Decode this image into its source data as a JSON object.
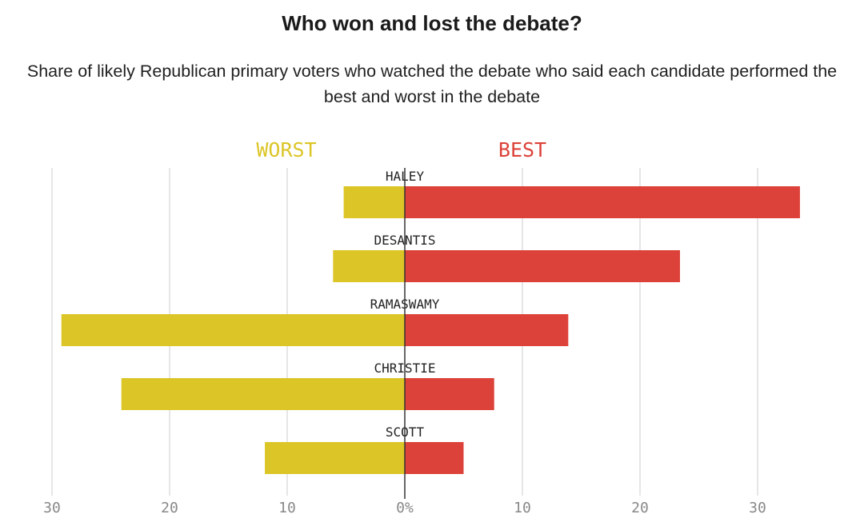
{
  "title": "Who won and lost the debate?",
  "subtitle": "Share of likely Republican primary voters who watched the debate who said each candidate performed the best and worst in the debate",
  "colors": {
    "worst": "#dcc526",
    "best": "#dc4239",
    "grid": "#d6d6d6",
    "axis": "#333333",
    "text": "#222222",
    "tick": "#888888"
  },
  "chart_data": {
    "type": "bar",
    "orientation": "horizontal-diverging",
    "title": "Who won and lost the debate?",
    "subtitle": "Share of likely Republican primary voters who watched the debate who said each candidate performed the best and worst in the debate",
    "categories": [
      "HALEY",
      "DESANTIS",
      "RAMASWAMY",
      "CHRISTIE",
      "SCOTT"
    ],
    "series": [
      {
        "name": "WORST",
        "values": [
          5.2,
          6.1,
          29.2,
          24.1,
          11.9
        ]
      },
      {
        "name": "BEST",
        "values": [
          33.6,
          23.4,
          13.9,
          7.6,
          5.0
        ]
      }
    ],
    "xlim": [
      -30,
      30
    ],
    "xticks": [
      {
        "value": -30,
        "label": "30"
      },
      {
        "value": -20,
        "label": "20"
      },
      {
        "value": -10,
        "label": "10"
      },
      {
        "value": 0,
        "label": "0%"
      },
      {
        "value": 10,
        "label": "10"
      },
      {
        "value": 20,
        "label": "20"
      },
      {
        "value": 30,
        "label": "30"
      }
    ],
    "grid": true,
    "legend": "top-center",
    "xlabel": "",
    "ylabel": ""
  }
}
